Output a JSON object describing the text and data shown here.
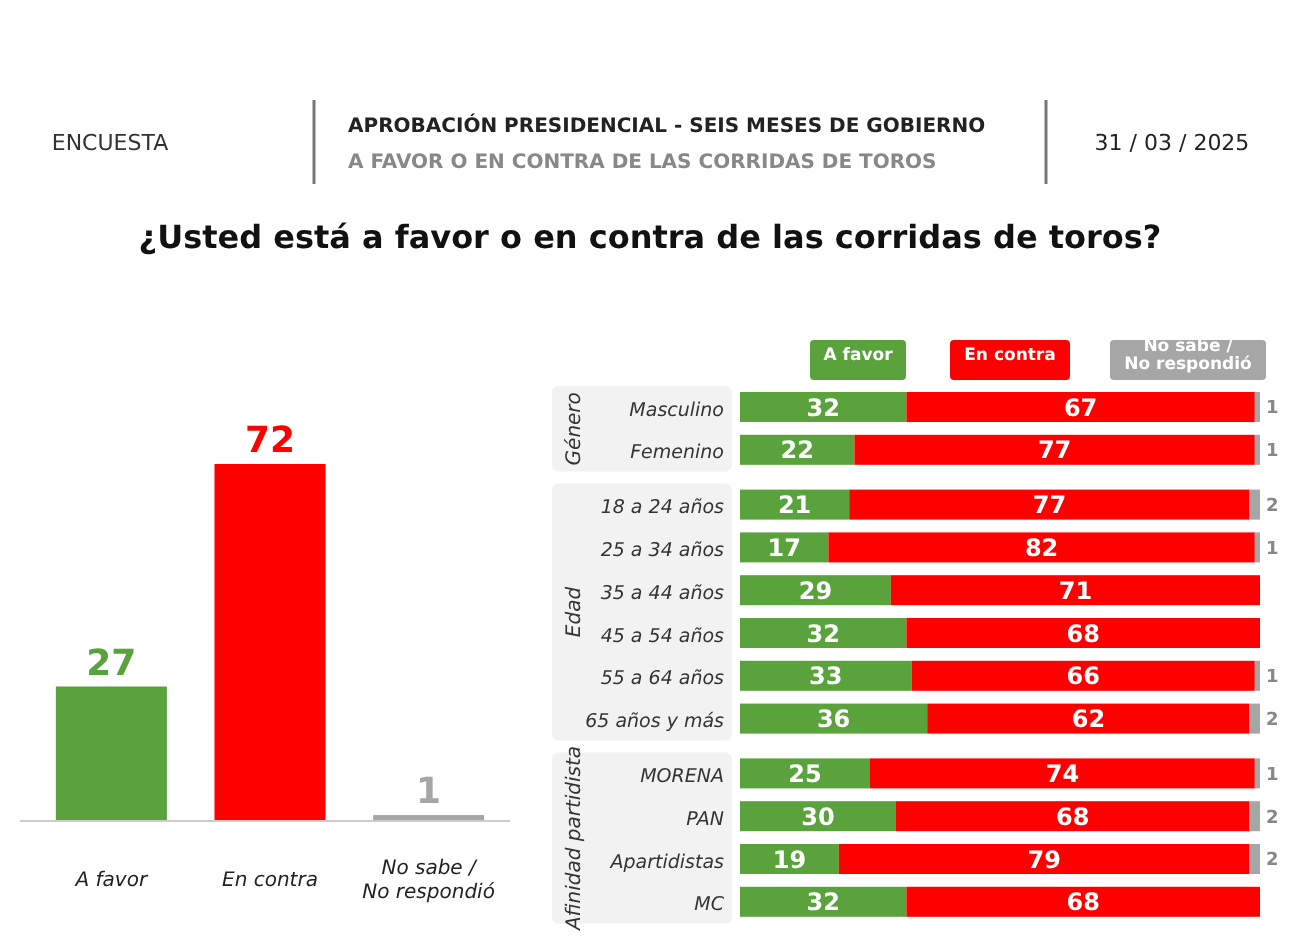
{
  "chart_data": [
    {
      "type": "bar",
      "title": "¿Usted está a favor o en contra de las corridas de toros?",
      "annotations": [
        "ENCUESTA",
        "APROBACIÓN PRESIDENCIAL - SEIS MESES DE GOBIERNO",
        "A FAVOR O EN CONTRA DE LAS CORRIDAS DE TOROS",
        "31 / 03 / 2025"
      ],
      "categories": [
        "A favor",
        "En contra",
        "No sabe / No respondió"
      ],
      "values": [
        27,
        72,
        1
      ],
      "colors": [
        "#59a23c",
        "#ff0000",
        "#a6a6a6"
      ],
      "data_labels": true
    },
    {
      "type": "bar",
      "orientation": "horizontal",
      "stacked": true,
      "legend": "top",
      "annotations": [
        "Género",
        "Edad",
        "Afinidad partidista"
      ],
      "categories": [
        "Masculino",
        "Femenino",
        "18 a 24 años",
        "25 a 34 años",
        "35 a 44 años",
        "45 a 54 años",
        "55 a 64 años",
        "65 años y más",
        "MORENA",
        "PAN",
        "Apartidistas",
        "MC"
      ],
      "series": [
        {
          "name": "A favor",
          "color": "#59a23c",
          "values": [
            32,
            22,
            21,
            17,
            29,
            32,
            33,
            36,
            25,
            30,
            19,
            32
          ],
          "value_labels": [
            "32",
            "22",
            "21",
            "17",
            "29",
            "32",
            "33",
            "36",
            "25",
            "30",
            "19",
            "32"
          ]
        },
        {
          "name": "En contra",
          "color": "#ff0000",
          "values": [
            67,
            77,
            77,
            82,
            71,
            68,
            66,
            62,
            74,
            68,
            79,
            68
          ],
          "value_labels": [
            "67",
            "77",
            "77",
            "82",
            "71",
            "68",
            "66",
            "62",
            "74",
            "68",
            "79",
            "68"
          ]
        },
        {
          "name": "No sabe / No respondió",
          "color": "#a6a6a6",
          "values": [
            1,
            1,
            2,
            1,
            0,
            0,
            1,
            2,
            1,
            2,
            2,
            0
          ],
          "value_labels": [
            "1",
            "1",
            "2",
            "1",
            null,
            null,
            "1",
            "2",
            "1",
            "2",
            "2",
            null
          ]
        }
      ]
    }
  ]
}
